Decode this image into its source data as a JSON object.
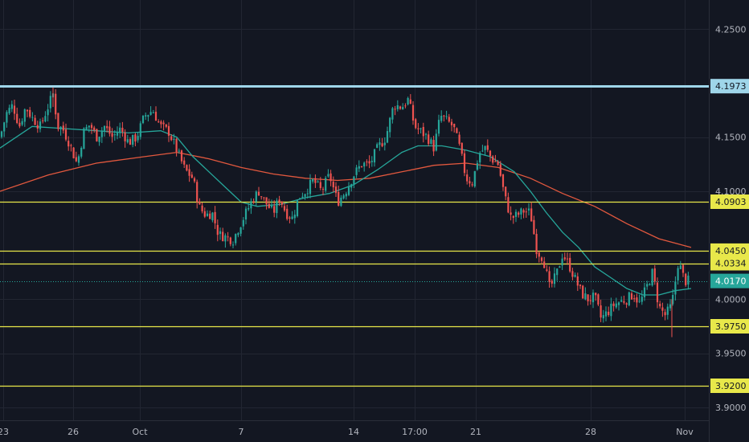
{
  "chart_data": {
    "type": "candlestick",
    "x_tick_labels": [
      "23",
      "26",
      "Oct",
      "7",
      "14",
      "17:00",
      "21",
      "28",
      "Nov"
    ],
    "y_ticks": [
      {
        "value": 4.25,
        "label": "4.2500"
      },
      {
        "value": 4.15,
        "label": "4.1500"
      },
      {
        "value": 4.1,
        "label": "4.1000"
      },
      {
        "value": 4.0,
        "label": "4.0000"
      },
      {
        "value": 3.95,
        "label": "3.9500"
      },
      {
        "value": 3.9,
        "label": "3.9000"
      }
    ],
    "ylim": [
      3.888,
      4.277
    ],
    "grid": true,
    "horizontal_levels": [
      {
        "value": 4.1973,
        "label": "4.1973",
        "color": "#9fd6ea"
      },
      {
        "value": 4.0903,
        "label": "4.0903",
        "color": "#e8e84a"
      },
      {
        "value": 4.045,
        "label": "4.0450",
        "color": "#e8e84a"
      },
      {
        "value": 4.0334,
        "label": "4.0334",
        "color": "#e8e84a"
      },
      {
        "value": 3.975,
        "label": "3.9750",
        "color": "#e8e84a"
      },
      {
        "value": 3.92,
        "label": "3.9200",
        "color": "#e8e84a"
      }
    ],
    "last_price": {
      "value": 4.017,
      "label": "4.0170",
      "color": "#26a69a"
    },
    "price_path": [
      [
        0,
        4.15
      ],
      [
        8,
        4.172
      ],
      [
        16,
        4.18
      ],
      [
        24,
        4.16
      ],
      [
        32,
        4.178
      ],
      [
        40,
        4.168
      ],
      [
        50,
        4.16
      ],
      [
        58,
        4.175
      ],
      [
        66,
        4.19
      ],
      [
        72,
        4.16
      ],
      [
        78,
        4.158
      ],
      [
        86,
        4.145
      ],
      [
        96,
        4.125
      ],
      [
        104,
        4.155
      ],
      [
        112,
        4.162
      ],
      [
        120,
        4.15
      ],
      [
        130,
        4.16
      ],
      [
        140,
        4.15
      ],
      [
        150,
        4.158
      ],
      [
        160,
        4.145
      ],
      [
        170,
        4.15
      ],
      [
        180,
        4.17
      ],
      [
        190,
        4.175
      ],
      [
        200,
        4.16
      ],
      [
        210,
        4.155
      ],
      [
        220,
        4.138
      ],
      [
        230,
        4.12
      ],
      [
        240,
        4.112
      ],
      [
        248,
        4.085
      ],
      [
        256,
        4.078
      ],
      [
        264,
        4.08
      ],
      [
        272,
        4.06
      ],
      [
        280,
        4.058
      ],
      [
        290,
        4.055
      ],
      [
        298,
        4.068
      ],
      [
        306,
        4.08
      ],
      [
        314,
        4.092
      ],
      [
        322,
        4.1
      ],
      [
        330,
        4.09
      ],
      [
        340,
        4.08
      ],
      [
        348,
        4.094
      ],
      [
        356,
        4.08
      ],
      [
        364,
        4.075
      ],
      [
        372,
        4.095
      ],
      [
        380,
        4.1
      ],
      [
        390,
        4.11
      ],
      [
        400,
        4.1
      ],
      [
        410,
        4.115
      ],
      [
        420,
        4.09
      ],
      [
        430,
        4.1
      ],
      [
        440,
        4.115
      ],
      [
        450,
        4.125
      ],
      [
        460,
        4.125
      ],
      [
        470,
        4.14
      ],
      [
        480,
        4.15
      ],
      [
        490,
        4.18
      ],
      [
        500,
        4.178
      ],
      [
        508,
        4.185
      ],
      [
        516,
        4.16
      ],
      [
        524,
        4.155
      ],
      [
        532,
        4.15
      ],
      [
        540,
        4.14
      ],
      [
        548,
        4.17
      ],
      [
        556,
        4.165
      ],
      [
        564,
        4.16
      ],
      [
        572,
        4.14
      ],
      [
        580,
        4.112
      ],
      [
        588,
        4.108
      ],
      [
        596,
        4.135
      ],
      [
        604,
        4.14
      ],
      [
        612,
        4.13
      ],
      [
        620,
        4.125
      ],
      [
        628,
        4.095
      ],
      [
        636,
        4.075
      ],
      [
        644,
        4.078
      ],
      [
        652,
        4.082
      ],
      [
        660,
        4.08
      ],
      [
        668,
        4.045
      ],
      [
        676,
        4.038
      ],
      [
        684,
        4.01
      ],
      [
        692,
        4.022
      ],
      [
        700,
        4.042
      ],
      [
        708,
        4.032
      ],
      [
        716,
        4.018
      ],
      [
        724,
        4.005
      ],
      [
        732,
        4.0
      ],
      [
        740,
        4.002
      ],
      [
        748,
        3.982
      ],
      [
        756,
        3.988
      ],
      [
        764,
        3.995
      ],
      [
        772,
        3.998
      ],
      [
        780,
        4.0
      ],
      [
        788,
        4.005
      ],
      [
        796,
        3.996
      ],
      [
        804,
        4.01
      ],
      [
        812,
        4.025
      ],
      [
        820,
        3.993
      ],
      [
        828,
        3.985
      ],
      [
        836,
        3.995
      ],
      [
        844,
        4.035
      ],
      [
        852,
        4.017
      ],
      [
        860,
        4.017
      ]
    ],
    "ma_fast": [
      [
        0,
        4.14
      ],
      [
        40,
        4.16
      ],
      [
        80,
        4.158
      ],
      [
        120,
        4.156
      ],
      [
        160,
        4.154
      ],
      [
        200,
        4.156
      ],
      [
        220,
        4.15
      ],
      [
        240,
        4.132
      ],
      [
        260,
        4.118
      ],
      [
        280,
        4.104
      ],
      [
        300,
        4.09
      ],
      [
        320,
        4.086
      ],
      [
        350,
        4.088
      ],
      [
        380,
        4.094
      ],
      [
        410,
        4.098
      ],
      [
        440,
        4.106
      ],
      [
        470,
        4.12
      ],
      [
        500,
        4.136
      ],
      [
        520,
        4.142
      ],
      [
        550,
        4.142
      ],
      [
        580,
        4.138
      ],
      [
        610,
        4.132
      ],
      [
        640,
        4.118
      ],
      [
        660,
        4.1
      ],
      [
        680,
        4.08
      ],
      [
        700,
        4.062
      ],
      [
        720,
        4.048
      ],
      [
        740,
        4.03
      ],
      [
        760,
        4.02
      ],
      [
        780,
        4.01
      ],
      [
        800,
        4.004
      ],
      [
        820,
        4.004
      ],
      [
        840,
        4.008
      ],
      [
        860,
        4.01
      ]
    ],
    "ma_slow": [
      [
        0,
        4.1
      ],
      [
        60,
        4.115
      ],
      [
        120,
        4.126
      ],
      [
        180,
        4.132
      ],
      [
        220,
        4.136
      ],
      [
        260,
        4.13
      ],
      [
        300,
        4.122
      ],
      [
        340,
        4.116
      ],
      [
        380,
        4.112
      ],
      [
        420,
        4.11
      ],
      [
        460,
        4.112
      ],
      [
        500,
        4.118
      ],
      [
        540,
        4.124
      ],
      [
        580,
        4.126
      ],
      [
        620,
        4.122
      ],
      [
        660,
        4.112
      ],
      [
        700,
        4.098
      ],
      [
        740,
        4.086
      ],
      [
        780,
        4.07
      ],
      [
        820,
        4.056
      ],
      [
        860,
        4.048
      ]
    ],
    "colors": {
      "up": "#26a69a",
      "down": "#ef5350",
      "ma_fast": "#26a69a",
      "ma_slow": "#e2583e",
      "grid": "#222632",
      "background": "#131722"
    }
  }
}
